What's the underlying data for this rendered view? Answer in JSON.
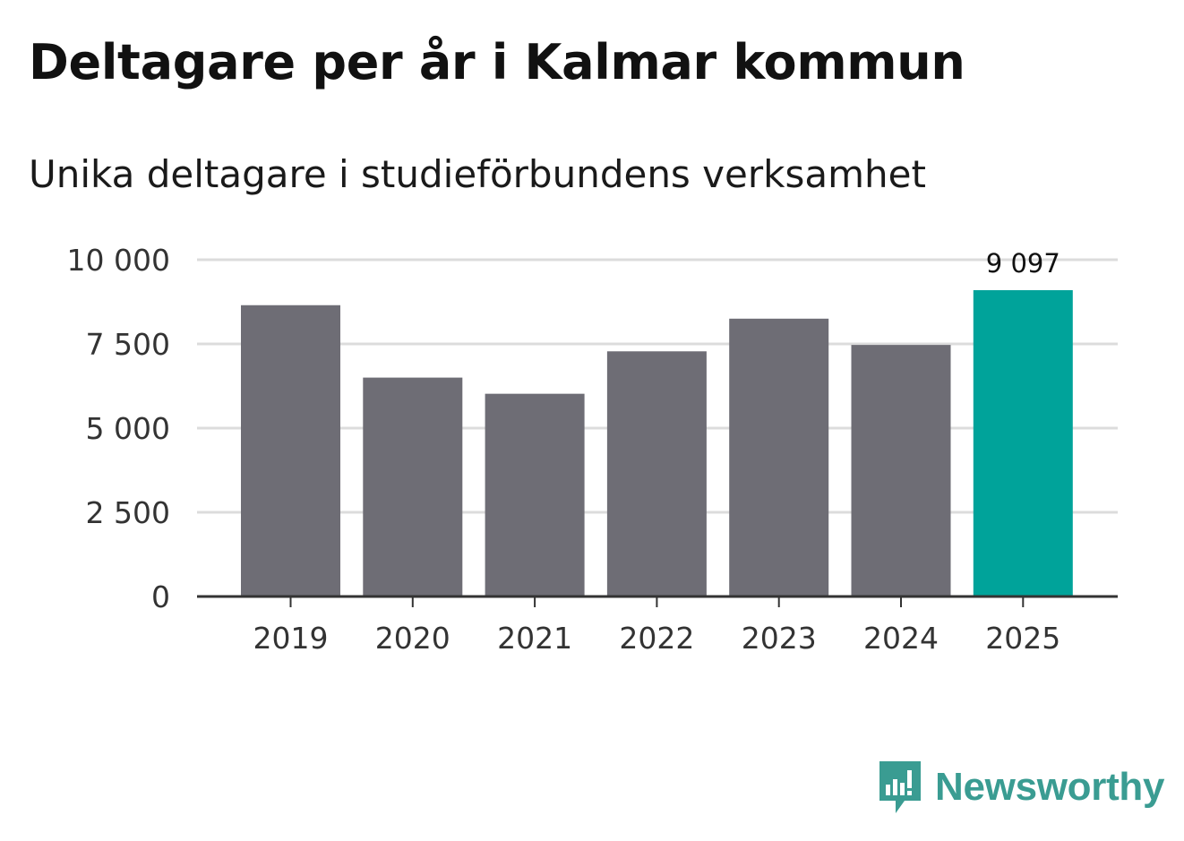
{
  "chart_data": {
    "type": "bar",
    "title": "Deltagare per år i Kalmar kommun",
    "subtitle": "Unika deltagare i studieförbundens verksamhet",
    "categories": [
      "2019",
      "2020",
      "2021",
      "2022",
      "2023",
      "2024",
      "2025"
    ],
    "values": [
      8650,
      6500,
      6020,
      7280,
      8250,
      7470,
      9097
    ],
    "ylim": [
      0,
      10000
    ],
    "yticks": [
      0,
      2500,
      5000,
      7500,
      10000
    ],
    "ytick_labels": [
      "0",
      "2 500",
      "5 000",
      "7 500",
      "10 000"
    ],
    "highlight_index": 6,
    "data_labels": [
      {
        "index": 6,
        "text": "9 097"
      }
    ],
    "colors": {
      "bar": "#6e6d75",
      "highlight": "#00a39a",
      "grid": "#dcdcdc",
      "axis": "#333333"
    },
    "grid": true
  },
  "brand": {
    "name": "Newsworthy",
    "color": "#3a9c92",
    "icon": "bar-chart-speech-bubble-icon"
  }
}
